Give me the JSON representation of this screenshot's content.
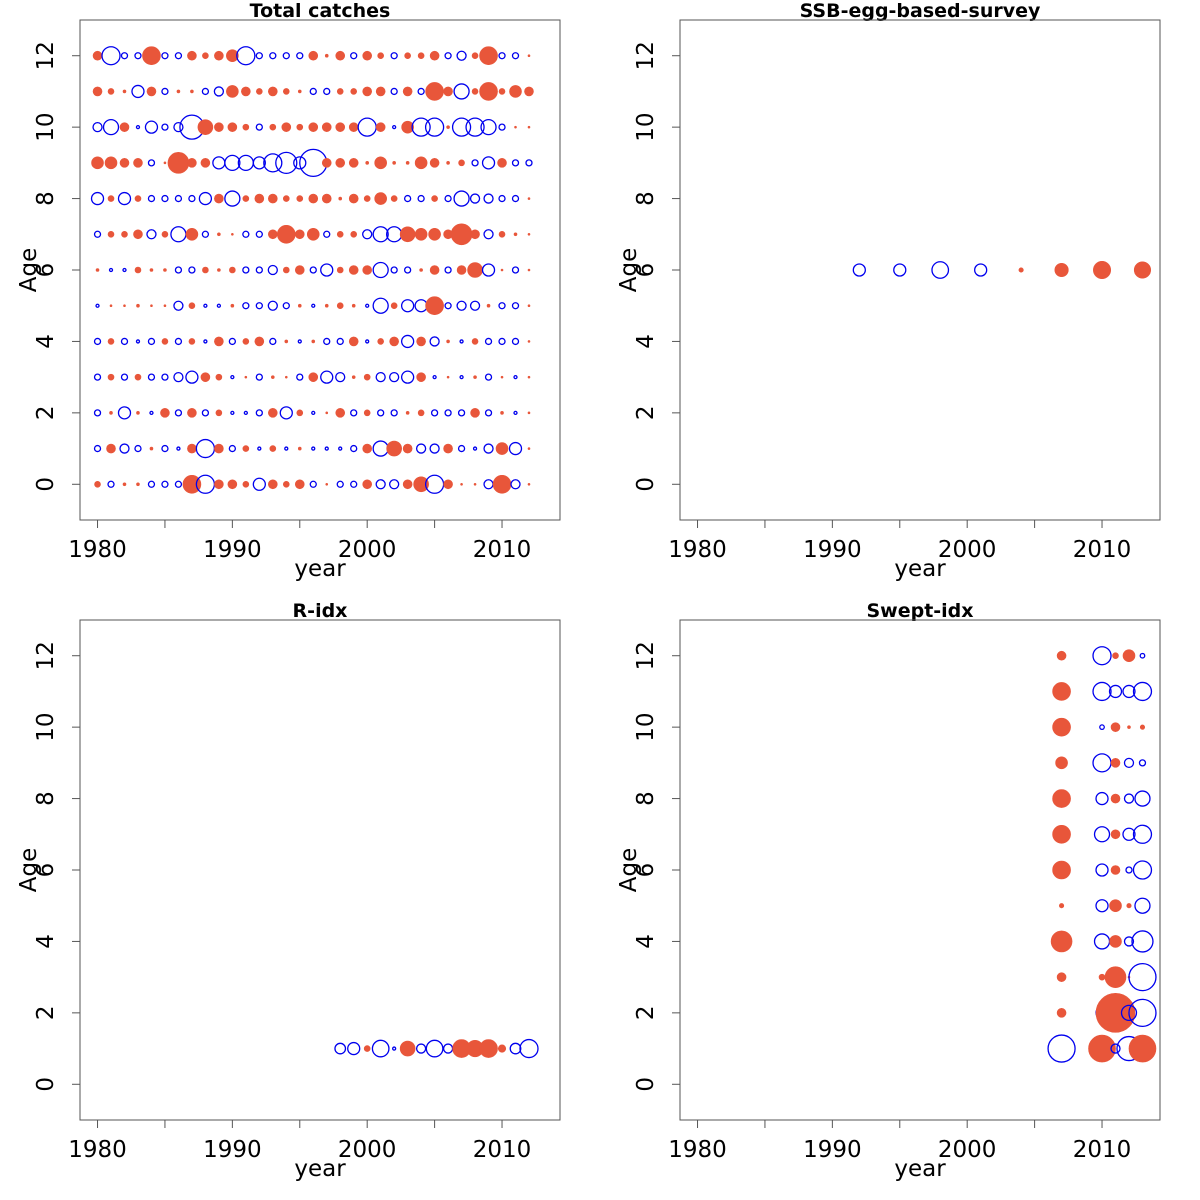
{
  "figure": {
    "background": "#ffffff"
  },
  "colors": {
    "positive": "#E8563A",
    "negative": "#0000EE",
    "frame": "#555555"
  },
  "chart_data": [
    {
      "type": "scatter",
      "title": "Total catches",
      "xlabel": "year",
      "ylabel": "Age",
      "xlim": [
        1978.7,
        2014.3
      ],
      "ylim": [
        -1,
        13
      ],
      "xticks": [
        1980,
        1990,
        2000,
        2010
      ],
      "yticks": [
        0,
        2,
        4,
        6,
        8,
        10,
        12
      ],
      "grid": false,
      "marker_encoding": "bubble size = |residual|; filled orange = positive, open blue = negative",
      "residual_matrix": {
        "years_from": 1980,
        "years_to": 2012,
        "ages": [
          0,
          1,
          2,
          3,
          4,
          5,
          6,
          7,
          8,
          9,
          10,
          11,
          12
        ],
        "rows": [
          [
            2,
            -2,
            1,
            1,
            -2,
            -2,
            -2,
            6,
            -6,
            3,
            3,
            2,
            -4,
            3,
            2,
            3,
            -2,
            0,
            -2,
            -2,
            3,
            -3,
            -3,
            3,
            5,
            -6,
            3,
            0,
            0,
            -3,
            6,
            -3,
            0
          ],
          [
            -2,
            3,
            -3,
            -2,
            1,
            -2,
            -1,
            3,
            -6,
            3,
            -2,
            2,
            -1,
            2,
            -1,
            1,
            -1,
            -1,
            -1,
            -2,
            3,
            -5,
            5,
            3,
            -3,
            -3,
            3,
            -2,
            -1,
            -3,
            4,
            -4,
            0
          ],
          [
            -2,
            1,
            -4,
            1,
            -1,
            3,
            -2,
            3,
            -2,
            2,
            -1,
            -1,
            -2,
            3,
            -4,
            2,
            -1,
            0,
            3,
            -2,
            2,
            -2,
            -2,
            1,
            2,
            -2,
            -2,
            -2,
            3,
            -2,
            1,
            -1,
            0
          ],
          [
            -2,
            2,
            -2,
            2,
            -2,
            -2,
            -3,
            -4,
            3,
            2,
            -1,
            0,
            -2,
            1,
            0,
            -2,
            3,
            -4,
            -3,
            1,
            2,
            -3,
            -3,
            -4,
            3,
            -1,
            0,
            -1,
            1,
            -2,
            0,
            -1,
            0
          ],
          [
            -2,
            2,
            -2,
            -1,
            -2,
            2,
            -2,
            2,
            -1,
            3,
            -2,
            2,
            3,
            -2,
            1,
            -1,
            1,
            -2,
            -2,
            3,
            -1,
            2,
            3,
            -4,
            3,
            -3,
            1,
            -1,
            2,
            -2,
            -2,
            -2,
            0
          ],
          [
            -1,
            0,
            0,
            1,
            0,
            0,
            -3,
            2,
            -1,
            -1,
            1,
            -2,
            -2,
            -3,
            -2,
            1,
            -1,
            1,
            2,
            1,
            -1,
            -5,
            2,
            -4,
            -4,
            6,
            -2,
            -3,
            -3,
            1,
            -2,
            -2,
            0
          ],
          [
            1,
            -1,
            -1,
            2,
            1,
            1,
            -2,
            -2,
            2,
            1,
            2,
            -2,
            -2,
            -3,
            2,
            3,
            -2,
            -4,
            2,
            3,
            3,
            -5,
            -2,
            -2,
            1,
            3,
            -2,
            3,
            5,
            -4,
            0,
            -2,
            0
          ],
          [
            -2,
            2,
            2,
            3,
            -3,
            2,
            -5,
            4,
            -2,
            1,
            0,
            -2,
            -2,
            3,
            6,
            3,
            4,
            -2,
            2,
            2,
            -3,
            -5,
            -5,
            5,
            4,
            4,
            3,
            7,
            3,
            -3,
            2,
            1,
            0
          ],
          [
            -4,
            2,
            -4,
            2,
            -2,
            -2,
            -2,
            -2,
            -4,
            3,
            -5,
            2,
            3,
            3,
            2,
            2,
            3,
            3,
            1,
            3,
            2,
            4,
            2,
            -2,
            -2,
            2,
            -2,
            -5,
            -3,
            -3,
            -2,
            -2,
            0
          ],
          [
            4,
            4,
            3,
            3,
            -2,
            0,
            7,
            3,
            3,
            -4,
            -5,
            -5,
            -4,
            -6,
            -7,
            -4,
            -9,
            3,
            3,
            3,
            1,
            4,
            1,
            1,
            4,
            3,
            1,
            2,
            -2,
            -4,
            3,
            -2,
            -2
          ],
          [
            -3,
            -5,
            3,
            -1,
            -4,
            -2,
            -3,
            -8,
            5,
            3,
            3,
            2,
            -2,
            2,
            3,
            2,
            3,
            3,
            3,
            3,
            -6,
            3,
            -1,
            4,
            -6,
            -6,
            1,
            -6,
            -6,
            -5,
            -2,
            0,
            0
          ],
          [
            3,
            2,
            1,
            -4,
            3,
            -2,
            1,
            1,
            -2,
            -3,
            4,
            3,
            2,
            3,
            2,
            1,
            -2,
            -2,
            2,
            2,
            3,
            3,
            -2,
            3,
            -2,
            6,
            3,
            -5,
            2,
            6,
            2,
            4,
            3
          ],
          [
            3,
            -6,
            -2,
            -2,
            6,
            -2,
            -2,
            3,
            2,
            3,
            4,
            -6,
            -2,
            -2,
            -2,
            -2,
            3,
            1,
            3,
            -2,
            3,
            2,
            -2,
            2,
            2,
            3,
            -2,
            -3,
            2,
            6,
            -2,
            -2,
            0
          ]
        ]
      }
    },
    {
      "type": "scatter",
      "title": "SSB-egg-based-survey",
      "xlabel": "year",
      "ylabel": "Age",
      "xlim": [
        1978.7,
        2014.3
      ],
      "ylim": [
        -1,
        13
      ],
      "xticks": [
        1980,
        1990,
        2000,
        2010
      ],
      "yticks": [
        0,
        2,
        4,
        6,
        8,
        10,
        12
      ],
      "grid": false,
      "points": [
        {
          "year": 1992,
          "age": 6,
          "residual": -4
        },
        {
          "year": 1995,
          "age": 6,
          "residual": -4
        },
        {
          "year": 1998,
          "age": 6,
          "residual": -5.5
        },
        {
          "year": 2001,
          "age": 6,
          "residual": -4
        },
        {
          "year": 2004,
          "age": 6,
          "residual": 1.5
        },
        {
          "year": 2007,
          "age": 6,
          "residual": 4.5
        },
        {
          "year": 2010,
          "age": 6,
          "residual": 5.8
        },
        {
          "year": 2013,
          "age": 6,
          "residual": 5.5
        }
      ]
    },
    {
      "type": "scatter",
      "title": "R-idx",
      "xlabel": "year",
      "ylabel": "Age",
      "xlim": [
        1978.7,
        2014.3
      ],
      "ylim": [
        -1,
        13
      ],
      "xticks": [
        1980,
        1990,
        2000,
        2010
      ],
      "yticks": [
        0,
        2,
        4,
        6,
        8,
        10,
        12
      ],
      "grid": false,
      "points": [
        {
          "year": 1998,
          "age": 1,
          "residual": -3.5
        },
        {
          "year": 1999,
          "age": 1,
          "residual": -4
        },
        {
          "year": 2000,
          "age": 1,
          "residual": 2
        },
        {
          "year": 2001,
          "age": 1,
          "residual": -5.5
        },
        {
          "year": 2002,
          "age": 1,
          "residual": -1
        },
        {
          "year": 2003,
          "age": 1,
          "residual": 5
        },
        {
          "year": 2004,
          "age": 1,
          "residual": -3
        },
        {
          "year": 2005,
          "age": 1,
          "residual": -5.5
        },
        {
          "year": 2006,
          "age": 1,
          "residual": -3
        },
        {
          "year": 2007,
          "age": 1,
          "residual": 6
        },
        {
          "year": 2008,
          "age": 1,
          "residual": 5.5
        },
        {
          "year": 2009,
          "age": 1,
          "residual": 6
        },
        {
          "year": 2010,
          "age": 1,
          "residual": 2.5
        },
        {
          "year": 2011,
          "age": 1,
          "residual": -3.5
        },
        {
          "year": 2012,
          "age": 1,
          "residual": -6
        }
      ]
    },
    {
      "type": "scatter",
      "title": "Swept-idx",
      "xlabel": "year",
      "ylabel": "Age",
      "xlim": [
        1978.7,
        2014.3
      ],
      "ylim": [
        -1,
        13
      ],
      "xticks": [
        1980,
        1990,
        2000,
        2010
      ],
      "yticks": [
        0,
        2,
        4,
        6,
        8,
        10,
        12
      ],
      "grid": false,
      "years": [
        2007,
        2010,
        2011,
        2012,
        2013
      ],
      "ages": [
        1,
        2,
        3,
        4,
        5,
        6,
        7,
        8,
        9,
        10,
        11,
        12
      ],
      "rows": [
        [
          -9,
          9,
          -3,
          -8,
          9
        ],
        [
          3,
          -4,
          13,
          -5,
          -9
        ],
        [
          3,
          2,
          7,
          0,
          -9
        ],
        [
          7,
          -5,
          4,
          -3,
          -7
        ],
        [
          1.5,
          -4,
          4,
          1.5,
          -5
        ],
        [
          6,
          -4,
          3,
          -2,
          -6
        ],
        [
          6,
          -5,
          3,
          -4,
          -6
        ],
        [
          6,
          -4,
          3,
          -3,
          -5
        ],
        [
          4,
          -6,
          3,
          -3,
          -2
        ],
        [
          6,
          -1.5,
          3,
          1,
          1.5
        ],
        [
          6,
          -6,
          -4,
          -4,
          -6
        ],
        [
          3,
          -6,
          2,
          4,
          -1.5
        ]
      ]
    }
  ]
}
